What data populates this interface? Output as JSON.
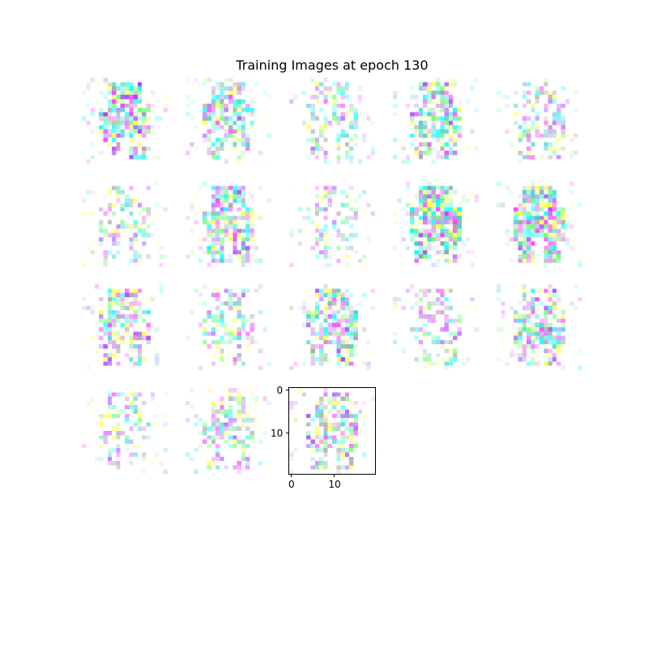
{
  "figure": {
    "title": "Training Images at epoch 130"
  },
  "chart_data": {
    "type": "heatmap",
    "title": "Training Images at epoch 130",
    "grid_rows": 4,
    "grid_cols": 5,
    "tile_count": 18,
    "tile_resolution": [
      20,
      20
    ],
    "axes_shown_on_tile": 18,
    "axis_ticks": {
      "x": [
        "0",
        "10"
      ],
      "y": [
        "0",
        "10"
      ]
    },
    "tile_color_scheme": "white background with noisy cyan, magenta, yellow, green and gray pixels forming a blurry humanoid figure",
    "palette": [
      "#ffffff",
      "#00ffff",
      "#ff33ff",
      "#ffff33",
      "#66ff66",
      "#999999",
      "#9933ff",
      "#33cccc"
    ]
  }
}
